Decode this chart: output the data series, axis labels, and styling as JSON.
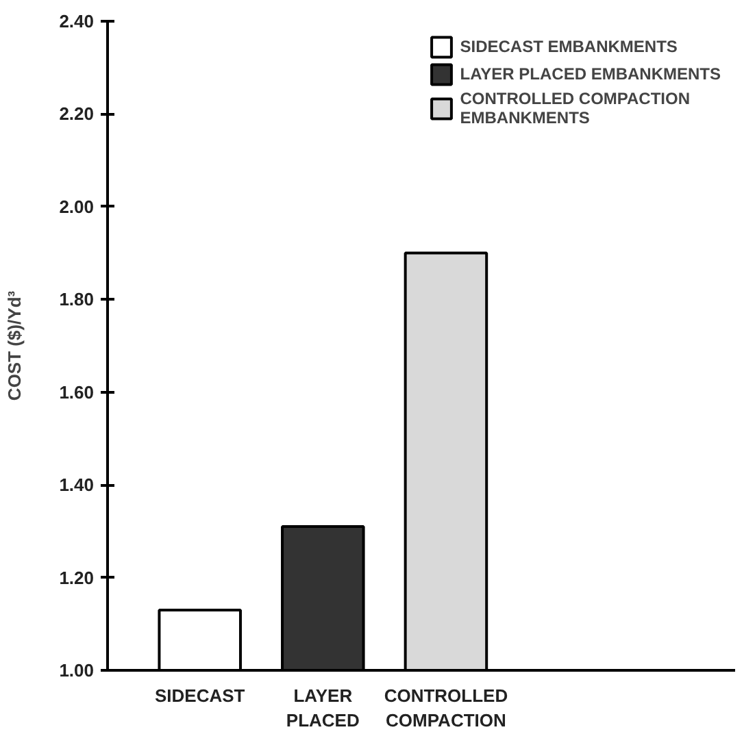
{
  "chart_data": {
    "type": "bar",
    "ylabel": "COST ($)/Yd³",
    "categories": [
      "SIDECAST",
      "LAYER PLACED",
      "CONTROLLED COMPACTION"
    ],
    "series": [
      {
        "name": "SIDECAST EMBANKMENTS",
        "color": "#ffffff",
        "values": [
          1.13,
          null,
          null
        ]
      },
      {
        "name": "LAYER PLACED EMBANKMENTS",
        "color": "#333333",
        "values": [
          null,
          1.31,
          null
        ]
      },
      {
        "name": "CONTROLLED COMPACTION EMBANKMENTS",
        "color": "#d9d9d9",
        "values": [
          null,
          null,
          1.9
        ]
      }
    ],
    "ylim": [
      1.0,
      2.4
    ],
    "yticks": [
      {
        "value": 1.0,
        "label": "1.00"
      },
      {
        "value": 1.2,
        "label": "1.20"
      },
      {
        "value": 1.4,
        "label": "1.40"
      },
      {
        "value": 1.6,
        "label": "1.60"
      },
      {
        "value": 1.8,
        "label": "1.80"
      },
      {
        "value": 2.0,
        "label": "2.00"
      },
      {
        "value": 2.2,
        "label": "2.20"
      },
      {
        "value": 2.4,
        "label": "2.40"
      }
    ],
    "grid": false,
    "legend": "top right"
  }
}
